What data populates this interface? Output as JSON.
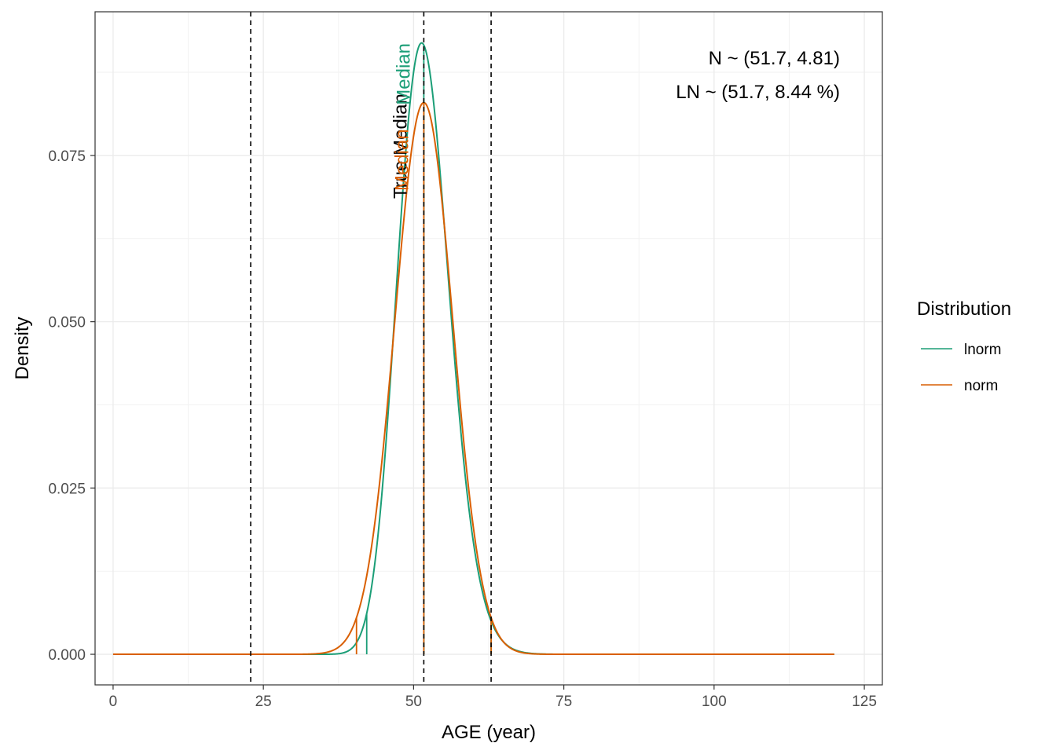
{
  "chart_data": {
    "type": "line",
    "xlabel": "AGE (year)",
    "ylabel": "Density",
    "xlim": [
      -3,
      128
    ],
    "ylim": [
      -0.0046,
      0.0966
    ],
    "x_ticks": [
      0,
      25,
      50,
      75,
      100,
      125
    ],
    "y_ticks": [
      0.0,
      0.025,
      0.05,
      0.075
    ],
    "y_tick_labels": [
      "0.000",
      "0.025",
      "0.050",
      "0.075"
    ],
    "grid": true,
    "vlines_dashed": [
      22.9,
      51.7,
      62.9
    ],
    "annotations": [
      "N ~ (51.7, 4.81)",
      "LN ~ (51.7, 8.44 %)"
    ],
    "vertical_labels": [
      {
        "text": "True Median",
        "color": "#000000"
      },
      {
        "text": "Median",
        "color": "#1B9E77"
      },
      {
        "text": "Median",
        "color": "#D95F02"
      }
    ],
    "legend": {
      "title": "Distribution",
      "position": "right",
      "entries": [
        {
          "label": "lnorm",
          "color": "#1B9E77"
        },
        {
          "label": "norm",
          "color": "#D95F02"
        }
      ]
    },
    "series": [
      {
        "name": "lnorm",
        "color": "#1B9E77",
        "distribution": {
          "family": "lognormal",
          "median": 51.7,
          "cv_percent": 8.44
        },
        "x_range": [
          0,
          120
        ],
        "interval_markers": [
          42.2,
          62.9
        ],
        "center_marker": 51.7
      },
      {
        "name": "norm",
        "color": "#D95F02",
        "distribution": {
          "family": "normal",
          "mean": 51.7,
          "sd": 4.81
        },
        "x_range": [
          0,
          120
        ],
        "interval_markers": [
          40.5,
          62.9
        ],
        "center_marker": 51.7
      }
    ]
  }
}
